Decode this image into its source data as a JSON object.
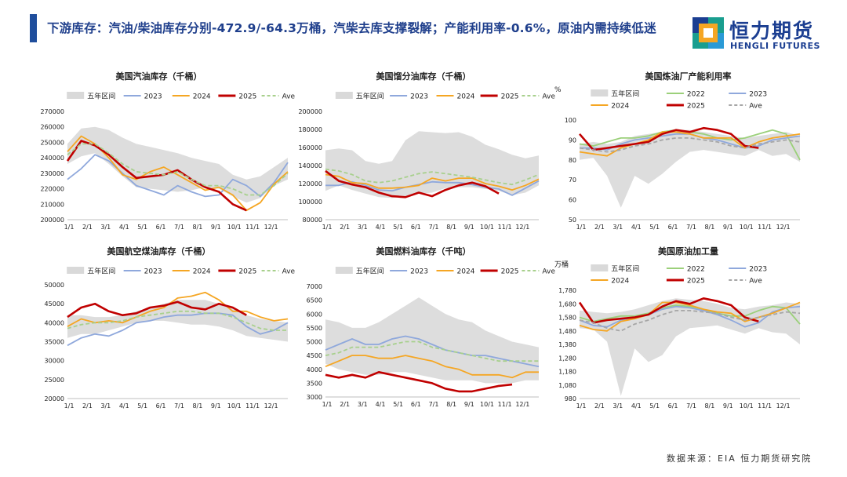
{
  "header": {
    "headline": "下游库存：汽油/柴油库存分别-472.9/-64.3万桶，汽柴去库支撑裂解；产能利用率-0.6%，原油内需持续低迷",
    "logo_cn": "恒力期货",
    "logo_en": "HENGLI FUTURES",
    "brand_color": "#1b3e91"
  },
  "footer": {
    "source": "数据来源：EIA 恒力期货研究院"
  },
  "legend_common": {
    "band": "五年区间",
    "ave": "Ave",
    "y2022": "2022",
    "y2023": "2023",
    "y2024": "2024",
    "y2025": "2025"
  },
  "colors": {
    "band": "#d9d9d9",
    "y2022": "#9bd07a",
    "y2023": "#8fa8dc",
    "y2024": "#f5a623",
    "y2025": "#c00000",
    "ave": "#a8d08d",
    "ave_alt": "#a6a6a6"
  },
  "chart_data": [
    {
      "id": "gasoline",
      "type": "line",
      "title": "美国汽油库存（千桶）",
      "unit_label": "",
      "ylim": [
        200000,
        270000
      ],
      "yticks": [
        "270000",
        "260000",
        "250000",
        "240000",
        "230000",
        "220000",
        "210000",
        "200000"
      ],
      "xticks": [
        "1/1",
        "2/1",
        "3/1",
        "4/1",
        "5/1",
        "6/1",
        "7/1",
        "8/1",
        "9/1",
        "10/1",
        "11/1",
        "12/1"
      ],
      "band_low": [
        236000,
        241000,
        243000,
        236000,
        228000,
        221000,
        220000,
        219000,
        218000,
        219000,
        221000,
        220000,
        215000,
        211000,
        214000,
        222000,
        226000
      ],
      "band_high": [
        249000,
        259000,
        260000,
        258000,
        253000,
        249000,
        247000,
        245000,
        243000,
        240000,
        238000,
        236000,
        229000,
        226000,
        228000,
        234000,
        240000
      ],
      "series": [
        {
          "name": "2023",
          "color": "#8fa8dc",
          "values": [
            226000,
            233000,
            242000,
            238000,
            230000,
            222000,
            219000,
            216000,
            222000,
            218000,
            215000,
            216000,
            226000,
            222000,
            215000,
            224000,
            237000
          ]
        },
        {
          "name": "2024",
          "color": "#f5a623",
          "values": [
            244000,
            254000,
            249000,
            240000,
            229000,
            226000,
            231000,
            234000,
            229000,
            224000,
            219000,
            221000,
            216000,
            206000,
            211000,
            223000,
            231000
          ]
        },
        {
          "name": "2025",
          "color": "#c00000",
          "values": [
            238000,
            251000,
            248000,
            242000,
            234000,
            227000,
            228000,
            229000,
            232000,
            226000,
            221000,
            218000,
            210000,
            206000,
            null,
            null,
            null
          ]
        },
        {
          "name": "Ave",
          "color": "#a8d08d",
          "dashed": true,
          "values": [
            242000,
            249000,
            249000,
            243000,
            236000,
            231000,
            230000,
            229000,
            231000,
            226000,
            222000,
            222000,
            220000,
            216000,
            216000,
            222000,
            230000
          ]
        }
      ]
    },
    {
      "id": "distillate",
      "type": "line",
      "title": "美国馏分油库存（千桶）",
      "unit_label": "",
      "ylim": [
        80000,
        200000
      ],
      "yticks": [
        "200000",
        "180000",
        "160000",
        "140000",
        "120000",
        "100000",
        "80000"
      ],
      "xticks": [
        "1/1",
        "2/1",
        "3/1",
        "4/1",
        "5/1",
        "6/1",
        "7/1",
        "8/1",
        "9/1",
        "10/1",
        "11/1",
        "12/1"
      ],
      "band_low": [
        112000,
        118000,
        113000,
        109000,
        105000,
        104000,
        106000,
        109000,
        110000,
        115000,
        116000,
        116000,
        114000,
        112000,
        107000,
        110000,
        118000
      ],
      "band_high": [
        157000,
        159000,
        157000,
        145000,
        142000,
        145000,
        168000,
        178000,
        177000,
        176000,
        177000,
        172000,
        163000,
        158000,
        152000,
        148000,
        151000
      ],
      "series": [
        {
          "name": "2023",
          "color": "#8fa8dc",
          "values": [
            118000,
            118000,
            122000,
            118000,
            113000,
            112000,
            116000,
            119000,
            122000,
            121000,
            121000,
            119000,
            116000,
            114000,
            107000,
            115000,
            123000
          ]
        },
        {
          "name": "2024",
          "color": "#f5a623",
          "values": [
            130000,
            128000,
            121000,
            120000,
            115000,
            115000,
            116000,
            118000,
            126000,
            123000,
            126000,
            126000,
            120000,
            117000,
            113000,
            118000,
            125000
          ]
        },
        {
          "name": "2025",
          "color": "#c00000",
          "values": [
            134000,
            123000,
            119000,
            116000,
            110000,
            106000,
            105000,
            110000,
            106000,
            113000,
            118000,
            121000,
            117000,
            109000,
            null,
            null,
            null
          ]
        },
        {
          "name": "Ave",
          "color": "#a8d08d",
          "dashed": true,
          "values": [
            136000,
            134000,
            130000,
            123000,
            121000,
            123000,
            127000,
            131000,
            133000,
            131000,
            129000,
            127000,
            124000,
            121000,
            119000,
            124000,
            130000
          ]
        }
      ]
    },
    {
      "id": "utilization",
      "type": "line",
      "title": "美国炼油厂产能利用率",
      "unit_label": "%",
      "ylim": [
        50,
        100
      ],
      "yticks": [
        "100",
        "90",
        "80",
        "70",
        "60",
        "50"
      ],
      "xticks": [
        "1/1",
        "2/1",
        "3/1",
        "4/1",
        "5/1",
        "6/1",
        "7/1",
        "8/1",
        "9/1",
        "10/1",
        "11/1",
        "12/1"
      ],
      "band_low": [
        80,
        81,
        72,
        56,
        72,
        68,
        73,
        79,
        84,
        85,
        84,
        83,
        82,
        85,
        82,
        83,
        79
      ],
      "band_high": [
        88,
        89,
        88,
        89,
        92,
        93,
        94,
        95,
        95,
        94,
        93,
        92,
        91,
        92,
        93,
        94,
        92
      ],
      "series": [
        {
          "name": "2022",
          "color": "#9bd07a",
          "values": [
            88,
            87,
            89,
            91,
            91,
            92,
            94,
            95,
            94,
            93,
            91,
            90,
            91,
            93,
            95,
            93,
            80
          ]
        },
        {
          "name": "2023",
          "color": "#8fa8dc",
          "values": [
            86,
            86,
            85,
            88,
            90,
            91,
            92,
            93,
            93,
            91,
            90,
            88,
            86,
            87,
            90,
            91,
            92
          ]
        },
        {
          "name": "2024",
          "color": "#f5a623",
          "values": [
            84,
            83,
            82,
            86,
            88,
            90,
            94,
            94,
            93,
            91,
            91,
            91,
            86,
            89,
            91,
            92,
            93
          ]
        },
        {
          "name": "2025",
          "color": "#c00000",
          "values": [
            93,
            85,
            86,
            87,
            88,
            89,
            93,
            95,
            94,
            96,
            95,
            93,
            87,
            86,
            null,
            null,
            null
          ]
        },
        {
          "name": "Ave",
          "color": "#a6a6a6",
          "dashed": true,
          "values": [
            86,
            85,
            84,
            85,
            87,
            88,
            90,
            91,
            91,
            90,
            89,
            87,
            86,
            88,
            89,
            90,
            89
          ]
        }
      ]
    },
    {
      "id": "jetfuel",
      "type": "line",
      "title": "美国航空煤油库存（千桶）",
      "unit_label": "",
      "ylim": [
        20000,
        50000
      ],
      "yticks": [
        "50000",
        "45000",
        "40000",
        "35000",
        "30000",
        "25000",
        "20000"
      ],
      "xticks": [
        "1/1",
        "2/1",
        "3/1",
        "4/1",
        "5/1",
        "6/1",
        "7/1",
        "8/1",
        "9/1",
        "10/1",
        "11/1",
        "12/1"
      ],
      "band_low": [
        36000,
        37000,
        37000,
        38000,
        39000,
        40000,
        40500,
        40500,
        40000,
        39500,
        39500,
        39000,
        38000,
        36500,
        36000,
        35500,
        35000
      ],
      "band_high": [
        42000,
        42000,
        41500,
        41500,
        42000,
        43000,
        44000,
        45000,
        46000,
        46000,
        46000,
        45000,
        44000,
        42000,
        41000,
        40500,
        40000
      ],
      "series": [
        {
          "name": "2023",
          "color": "#8fa8dc",
          "values": [
            34000,
            36000,
            37000,
            36500,
            38000,
            40000,
            40500,
            41500,
            42000,
            42000,
            42500,
            42500,
            42000,
            39000,
            37000,
            38000,
            40000
          ]
        },
        {
          "name": "2024",
          "color": "#f5a623",
          "values": [
            39000,
            41000,
            40000,
            40500,
            40000,
            41500,
            43000,
            44000,
            46500,
            47000,
            48000,
            46000,
            43000,
            43000,
            41500,
            40500,
            41000
          ]
        },
        {
          "name": "2025",
          "color": "#c00000",
          "values": [
            41500,
            44000,
            45000,
            43000,
            42000,
            42500,
            44000,
            44500,
            45500,
            44000,
            43500,
            45000,
            44000,
            42000,
            null,
            null,
            null
          ]
        },
        {
          "name": "Ave",
          "color": "#a8d08d",
          "dashed": true,
          "values": [
            38500,
            39500,
            40000,
            40000,
            40500,
            41500,
            42000,
            42500,
            43000,
            43000,
            42500,
            42500,
            41500,
            40000,
            38500,
            38000,
            38000
          ]
        }
      ]
    },
    {
      "id": "fueloil",
      "type": "line",
      "title": "美国燃料油库存（千吨）",
      "unit_label": "",
      "ylim": [
        3000,
        7000
      ],
      "yticks": [
        "7000",
        "6500",
        "6000",
        "5500",
        "5000",
        "4500",
        "4000",
        "3500",
        "3000"
      ],
      "xticks": [
        "1/1",
        "2/1",
        "3/1",
        "4/1",
        "5/1",
        "6/1",
        "7/1",
        "8/1",
        "9/1",
        "10/1",
        "11/1",
        "12/1"
      ],
      "band_low": [
        4200,
        4000,
        3900,
        3800,
        3800,
        3900,
        3900,
        3800,
        3700,
        3600,
        3600,
        3600,
        3500,
        3500,
        3500,
        3600,
        3600
      ],
      "band_high": [
        5800,
        5700,
        5500,
        5500,
        5700,
        6000,
        6300,
        6600,
        6300,
        6000,
        5800,
        5700,
        5400,
        5200,
        5000,
        4900,
        4800
      ],
      "series": [
        {
          "name": "2023",
          "color": "#8fa8dc",
          "values": [
            4700,
            4900,
            5100,
            4900,
            4900,
            5100,
            5200,
            5100,
            4900,
            4700,
            4600,
            4500,
            4500,
            4400,
            4300,
            4200,
            4100
          ]
        },
        {
          "name": "2024",
          "color": "#f5a623",
          "values": [
            4100,
            4300,
            4500,
            4500,
            4400,
            4400,
            4500,
            4400,
            4300,
            4100,
            4000,
            3800,
            3800,
            3800,
            3700,
            3900,
            3900
          ]
        },
        {
          "name": "2025",
          "color": "#c00000",
          "values": [
            3800,
            3700,
            3800,
            3700,
            3900,
            3800,
            3700,
            3600,
            3500,
            3300,
            3200,
            3200,
            3300,
            3400,
            3450,
            null,
            null
          ]
        },
        {
          "name": "Ave",
          "color": "#a8d08d",
          "dashed": true,
          "values": [
            4500,
            4600,
            4800,
            4800,
            4800,
            4900,
            5000,
            5000,
            4800,
            4700,
            4600,
            4500,
            4400,
            4300,
            4300,
            4300,
            4300
          ]
        }
      ]
    },
    {
      "id": "production",
      "type": "line",
      "title": "美国原油加工量",
      "unit_label": "万桶",
      "ylim": [
        980,
        1780
      ],
      "yticks": [
        "1,780",
        "1,680",
        "1,580",
        "1,480",
        "1,380",
        "1,280",
        "1,180",
        "1,080",
        "980"
      ],
      "xticks": [
        "1/1",
        "2/1",
        "3/1",
        "4/1",
        "5/1",
        "6/1",
        "7/1",
        "8/1",
        "9/1",
        "10/1",
        "11/1",
        "12/1"
      ],
      "band_low": [
        1500,
        1490,
        1400,
        1000,
        1350,
        1250,
        1300,
        1440,
        1500,
        1510,
        1520,
        1490,
        1460,
        1500,
        1470,
        1460,
        1380
      ],
      "band_high": [
        1630,
        1620,
        1610,
        1620,
        1640,
        1670,
        1700,
        1720,
        1710,
        1700,
        1680,
        1650,
        1640,
        1660,
        1670,
        1690,
        1680
      ],
      "series": [
        {
          "name": "2022",
          "color": "#9bd07a",
          "values": [
            1580,
            1550,
            1570,
            1590,
            1590,
            1610,
            1650,
            1670,
            1660,
            1640,
            1610,
            1590,
            1590,
            1630,
            1660,
            1650,
            1530
          ]
        },
        {
          "name": "2023",
          "color": "#8fa8dc",
          "values": [
            1560,
            1520,
            1510,
            1560,
            1580,
            1600,
            1640,
            1660,
            1650,
            1630,
            1600,
            1560,
            1510,
            1540,
            1620,
            1650,
            1660
          ]
        },
        {
          "name": "2024",
          "color": "#f5a623",
          "values": [
            1520,
            1490,
            1480,
            1550,
            1570,
            1600,
            1690,
            1690,
            1670,
            1640,
            1620,
            1610,
            1550,
            1580,
            1610,
            1650,
            1690
          ]
        },
        {
          "name": "2025",
          "color": "#c00000",
          "values": [
            1690,
            1540,
            1560,
            1570,
            1580,
            1600,
            1660,
            1700,
            1680,
            1720,
            1700,
            1670,
            1580,
            1550,
            null,
            null,
            null
          ]
        },
        {
          "name": "Ave",
          "color": "#a6a6a6",
          "dashed": true,
          "values": [
            1560,
            1540,
            1500,
            1480,
            1530,
            1560,
            1600,
            1630,
            1630,
            1620,
            1610,
            1580,
            1560,
            1580,
            1600,
            1620,
            1610
          ]
        }
      ]
    }
  ]
}
